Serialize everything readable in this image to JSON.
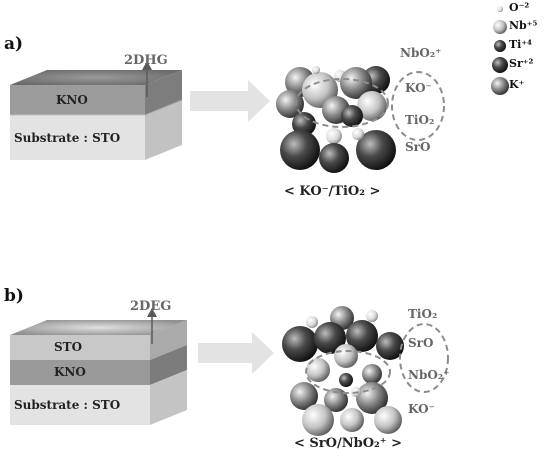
{
  "panel_a": {
    "label": "a)",
    "gas": "2DHG",
    "layers": [
      "KNO",
      "Substrate : STO"
    ],
    "molecule_labels": [
      "NbO₂⁺",
      "KO⁻",
      "TiO₂",
      "SrO"
    ],
    "caption": "< KO⁻/TiO₂ >"
  },
  "panel_b": {
    "label": "b)",
    "gas": "2DEG",
    "layers": [
      "STO",
      "KNO",
      "Substrate : STO"
    ],
    "molecule_labels": [
      "TiO₂",
      "SrO",
      "NbO₂⁺",
      "KO⁻"
    ],
    "caption": "< SrO/NbO₂⁺ >"
  },
  "legend": {
    "items": [
      {
        "label": "O⁻²",
        "icon": "small-white-sphere"
      },
      {
        "label": "Nb⁺⁵",
        "icon": "light-sphere"
      },
      {
        "label": "Ti⁺⁴",
        "icon": "dark-small-sphere"
      },
      {
        "label": "Sr⁺²",
        "icon": "dark-large-sphere"
      },
      {
        "label": "K⁺",
        "icon": "grey-large-sphere"
      }
    ]
  }
}
